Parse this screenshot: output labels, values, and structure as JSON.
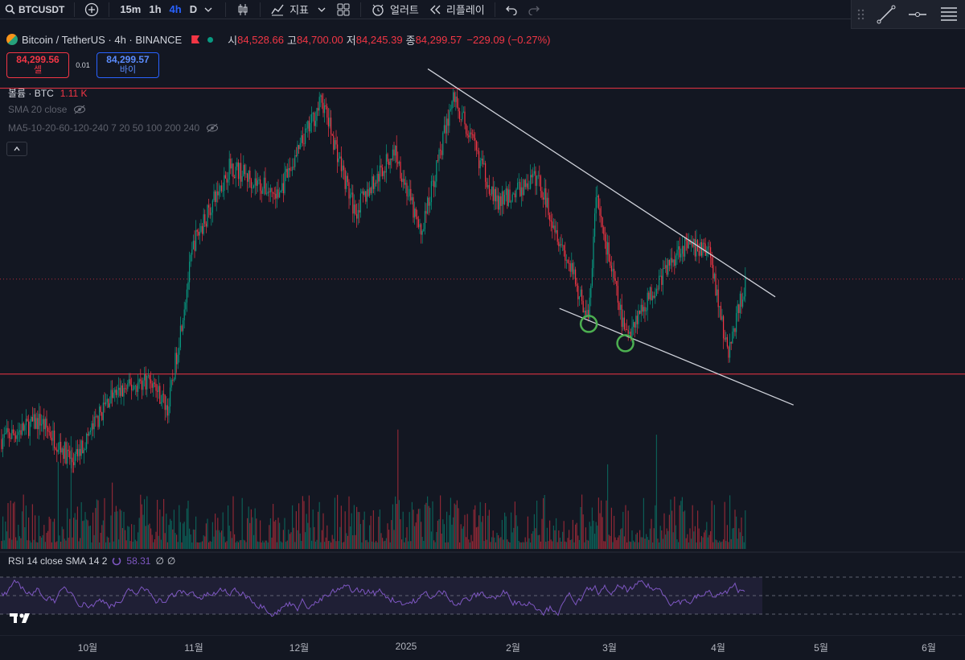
{
  "toolbar": {
    "symbol": "BTCUSDT",
    "intervals": [
      "15m",
      "1h",
      "4h",
      "D"
    ],
    "active_interval": "4h",
    "indicators_label": "지표",
    "alert_label": "얼러트",
    "replay_label": "리플레이"
  },
  "legend": {
    "title": "Bitcoin / TetherUS · 4h · BINANCE",
    "open_k": "시",
    "open_v": "84,528.66",
    "high_k": "고",
    "high_v": "84,700.00",
    "low_k": "저",
    "low_v": "84,245.39",
    "close_k": "종",
    "close_v": "84,299.57",
    "change": "−229.09 (−0.27%)"
  },
  "trade": {
    "sell_price": "84,299.56",
    "sell_label": "셀",
    "spread": "0.01",
    "buy_price": "84,299.57",
    "buy_label": "바이"
  },
  "indicators": {
    "volume_label": "볼륨 · BTC",
    "volume_value": "1.11 K",
    "sma_label": "SMA 20 close",
    "ma_label": "MA5-10-20-60-120-240 7 20 50 100 200 240"
  },
  "rsi": {
    "label": "RSI 14 close SMA 14 2",
    "value": "58.31",
    "extra1": "∅",
    "extra2": "∅"
  },
  "x_axis": {
    "labels": [
      "10월",
      "11월",
      "12월",
      "2025",
      "2월",
      "3월",
      "4월",
      "5월",
      "6월"
    ]
  },
  "colors": {
    "up": "#089981",
    "down": "#f23645",
    "background": "#131722",
    "hline": "#f23645",
    "trendline": "#d1d4dc",
    "circle": "#4caf50",
    "rsi": "#7e57c2"
  },
  "chart_data": {
    "type": "line",
    "title": "Bitcoin / TetherUS · 4h · BINANCE",
    "x_labels": [
      "10월",
      "11월",
      "12월",
      "2025",
      "2월",
      "3월",
      "4월",
      "5월",
      "6월"
    ],
    "price_path_note_free": true,
    "price_series": [
      {
        "name": "BTCUSDT",
        "points": [
          [
            "2024-09-20",
            63500
          ],
          [
            "2024-10-01",
            66000
          ],
          [
            "2024-10-10",
            60500
          ],
          [
            "2024-10-20",
            69000
          ],
          [
            "2024-10-31",
            71500
          ],
          [
            "2024-11-05",
            67500
          ],
          [
            "2024-11-12",
            89000
          ],
          [
            "2024-11-22",
            99000
          ],
          [
            "2024-12-05",
            95000
          ],
          [
            "2024-12-17",
            107500
          ],
          [
            "2024-12-26",
            93000
          ],
          [
            "2025-01-06",
            101000
          ],
          [
            "2025-01-13",
            90000
          ],
          [
            "2025-01-22",
            108000
          ],
          [
            "2025-02-03",
            94000
          ],
          [
            "2025-02-14",
            97500
          ],
          [
            "2025-02-28",
            79000
          ],
          [
            "2025-03-02",
            95000
          ],
          [
            "2025-03-10",
            77000
          ],
          [
            "2025-03-25",
            88500
          ],
          [
            "2025-04-02",
            88000
          ],
          [
            "2025-04-07",
            74500
          ],
          [
            "2025-04-12",
            84300
          ]
        ]
      }
    ],
    "horizontal_levels": [
      109000,
      72000
    ],
    "trendlines": [
      {
        "from": [
          "2025-01-15",
          111500
        ],
        "to": [
          "2025-04-20",
          82000
        ]
      },
      {
        "from": [
          "2025-02-20",
          80500
        ],
        "to": [
          "2025-04-25",
          68000
        ]
      }
    ],
    "circled_lows": [
      [
        "2025-02-28",
        78500
      ],
      [
        "2025-03-10",
        76000
      ]
    ],
    "rsi_value": 58.31,
    "rsi_bands": [
      70,
      50,
      30
    ]
  }
}
